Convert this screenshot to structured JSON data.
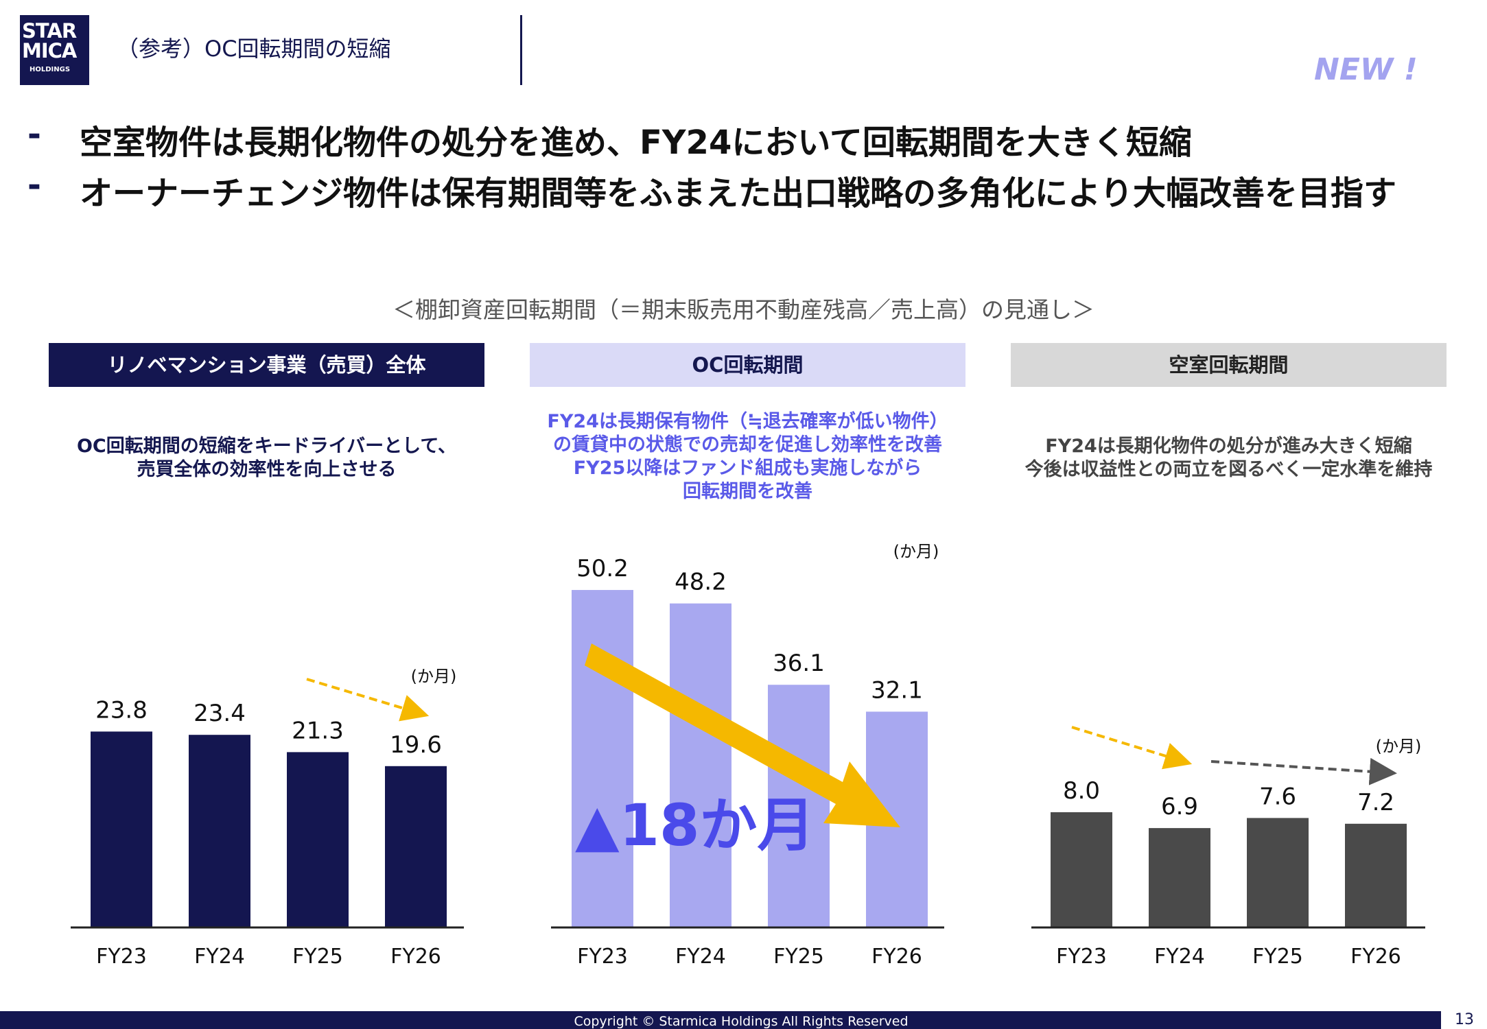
{
  "logo": {
    "line1": "STAR",
    "line2": "MICA",
    "line3": "HOLDINGS"
  },
  "header": {
    "title": "（参考）OC回転期間の短縮",
    "badge": "NEW !"
  },
  "bullets": [
    {
      "dash": "-",
      "text": "空室物件は長期化物件の処分を進め、FY24において回転期間を大きく短縮"
    },
    {
      "dash": "-",
      "text": "オーナーチェンジ物件は保有期間等をふまえた出口戦略の多角化により大幅改善を目指す"
    }
  ],
  "section_title": "＜棚卸資産回転期間（＝期末販売用不動産残高／売上高）の見通し＞",
  "panels": [
    {
      "header": "リノベマンション事業（売買）全体",
      "desc": [
        "OC回転期間の短縮をキードライバーとして、",
        "売買全体の効率性を向上させる"
      ]
    },
    {
      "header": "OC回転期間",
      "desc": [
        "FY24は長期保有物件（≒退去確率が低い物件）",
        "の賃貸中の状態での売却を促進し効率性を改善",
        "FY25以降はファンド組成も実施しながら",
        "回転期間を改善"
      ],
      "annotation": "▲18か月"
    },
    {
      "header": "空室回転期間",
      "desc": [
        "FY24は長期化物件の処分が進み大きく短縮",
        "今後は収益性との両立を図るべく一定水準を維持"
      ]
    }
  ],
  "chart_data": [
    {
      "type": "bar",
      "categories": [
        "FY23",
        "FY24",
        "FY25",
        "FY26"
      ],
      "values": [
        23.8,
        23.4,
        21.3,
        19.6
      ],
      "unit": "(か月)",
      "color": "#141650"
    },
    {
      "type": "bar",
      "categories": [
        "FY23",
        "FY24",
        "FY25",
        "FY26"
      ],
      "values": [
        50.2,
        48.2,
        36.1,
        32.1
      ],
      "unit": "(か月)",
      "color": "#a8a8f0"
    },
    {
      "type": "bar",
      "categories": [
        "FY23",
        "FY24",
        "FY25",
        "FY26"
      ],
      "values": [
        8.0,
        6.9,
        7.6,
        7.2
      ],
      "unit": "(か月)",
      "color": "#4a4a4a"
    }
  ],
  "colors": {
    "navy": "#141650",
    "lavender": "#a8a8f0",
    "gray": "#4a4a4a",
    "accent_arrow": "#f5b800"
  },
  "footer": {
    "copyright": "Copyright ©  Starmica Holdings All Rights Reserved",
    "page": "13"
  }
}
